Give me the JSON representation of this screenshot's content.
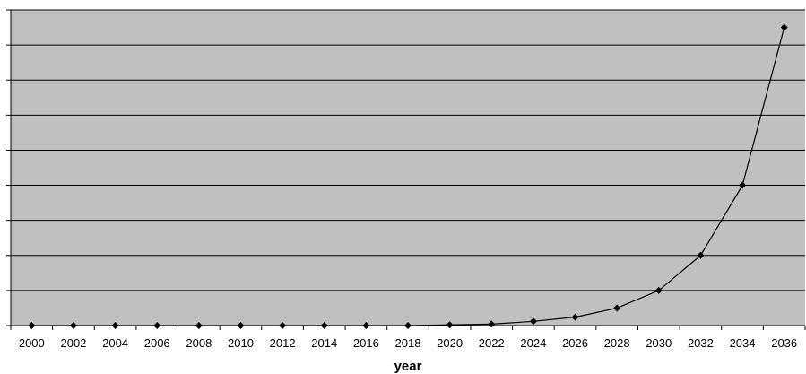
{
  "chart_data": {
    "type": "line",
    "title": "",
    "xlabel": "year",
    "ylabel": "",
    "x": [
      "2000",
      "2002",
      "2004",
      "2006",
      "2008",
      "2010",
      "2012",
      "2014",
      "2016",
      "2018",
      "2020",
      "2022",
      "2024",
      "2026",
      "2028",
      "2030",
      "2032",
      "2034",
      "2036"
    ],
    "series": [
      {
        "values": [
          0,
          0,
          0,
          0,
          0,
          0,
          0,
          0,
          0,
          0,
          0.01,
          0.02,
          0.06,
          0.12,
          0.25,
          0.5,
          1.0,
          2.0,
          4.25
        ]
      }
    ],
    "ylim": [
      0,
      4.5
    ],
    "y_gridlines": 9,
    "grid": true,
    "y_tick_labels_visible": false,
    "marker": "diamond",
    "colors": {
      "plot_background": "#c0c0c0",
      "gridline": "#000000",
      "line": "#000000",
      "marker": "#000000"
    }
  }
}
